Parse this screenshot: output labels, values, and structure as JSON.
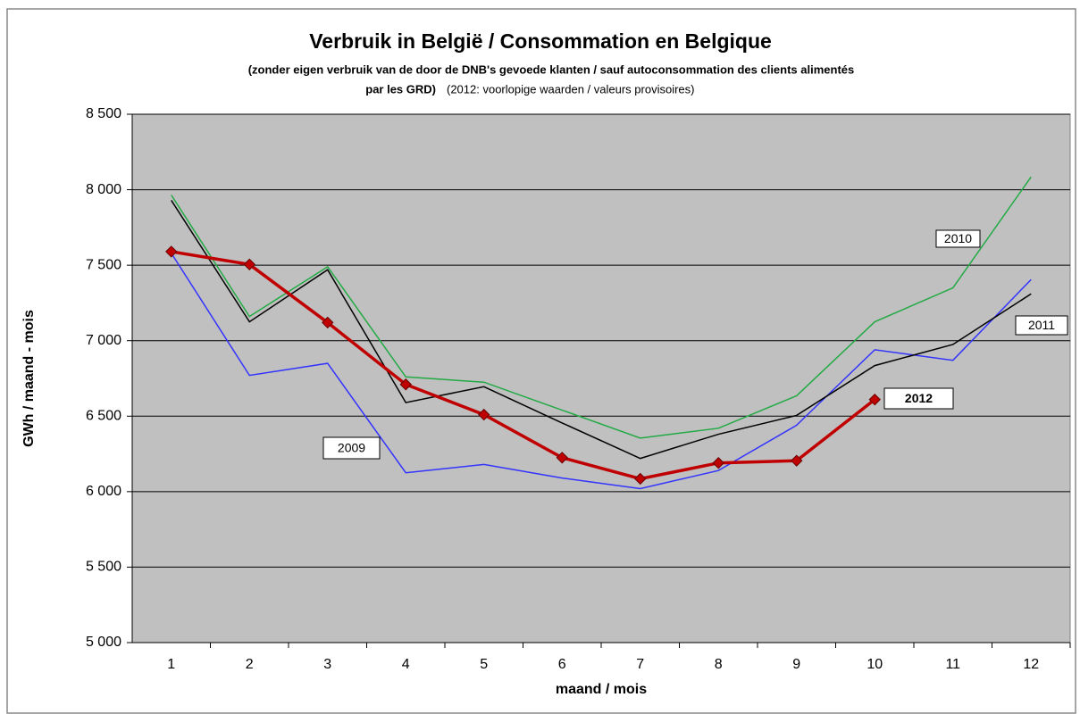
{
  "chart_data": {
    "type": "line",
    "title": "Verbruik in België / Consommation en Belgique",
    "subtitle": [
      "(zonder eigen verbruik van de door de DNB's gevoede  klanten / sauf autoconsommation des clients alimentés",
      "par les GRD)"
    ],
    "note": "(2012: voorlopige waarden / valeurs provisoires)",
    "x_label": "maand / mois",
    "y_label": "GWh / maand - mois",
    "categories": [
      "1",
      "2",
      "3",
      "4",
      "5",
      "6",
      "7",
      "8",
      "9",
      "10",
      "11",
      "12"
    ],
    "ylim": [
      5000,
      8500
    ],
    "yticks": [
      {
        "value": 5000,
        "label": "5 000"
      },
      {
        "value": 5500,
        "label": "5 500"
      },
      {
        "value": 6000,
        "label": "6 000"
      },
      {
        "value": 6500,
        "label": "6 500"
      },
      {
        "value": 7000,
        "label": "7 000"
      },
      {
        "value": 7500,
        "label": "7 500"
      },
      {
        "value": 8000,
        "label": "8 000"
      },
      {
        "value": 8500,
        "label": "8 500"
      }
    ],
    "grid": true,
    "series": [
      {
        "name": "2009",
        "color": "#3333ff",
        "values": [
          7580,
          6770,
          6850,
          6125,
          6180,
          6090,
          6020,
          6140,
          6440,
          6940,
          6870,
          7405
        ]
      },
      {
        "name": "2010",
        "color": "#22aa44",
        "values": [
          7965,
          7160,
          7490,
          6760,
          6725,
          6540,
          6355,
          6420,
          6635,
          7125,
          7350,
          8085
        ]
      },
      {
        "name": "2011",
        "color": "#000000",
        "values": [
          7930,
          7125,
          7470,
          6590,
          6695,
          6455,
          6220,
          6380,
          6505,
          6835,
          6975,
          7310
        ]
      },
      {
        "name": "2012",
        "color": "#c00000",
        "values": [
          7590,
          7505,
          7120,
          6710,
          6510,
          6225,
          6085,
          6190,
          6205,
          6610,
          null,
          null
        ]
      }
    ]
  }
}
